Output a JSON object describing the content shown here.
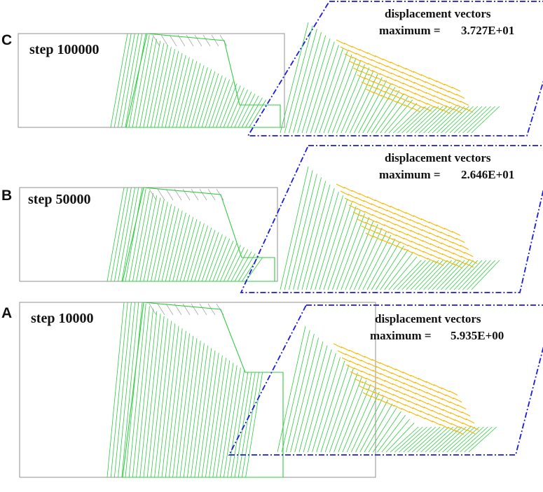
{
  "panels": [
    {
      "id": "C",
      "letter": "C",
      "step_label": "step 100000",
      "displacement_title": "displacement vectors",
      "max_label": "maximum =",
      "max_value": "3.727E+01",
      "colors": {
        "mesh": "#2ecc40",
        "outline_before": "#909090",
        "vectors": "#f5b800",
        "frame": "#1a1ae0"
      }
    },
    {
      "id": "B",
      "letter": "B",
      "step_label": "step 50000",
      "displacement_title": "displacement vectors",
      "max_label": "maximum =",
      "max_value": "2.646E+01",
      "colors": {
        "mesh": "#2ecc40",
        "outline_before": "#909090",
        "vectors": "#f5b800",
        "frame": "#1a1ae0"
      }
    },
    {
      "id": "A",
      "letter": "A",
      "step_label": "step 10000",
      "displacement_title": "displacement vectors",
      "max_label": "maximum =",
      "max_value": "5.935E+00",
      "colors": {
        "mesh": "#2ecc40",
        "outline_before": "#909090",
        "vectors": "#f5b800",
        "frame": "#1a1ae0"
      }
    }
  ]
}
